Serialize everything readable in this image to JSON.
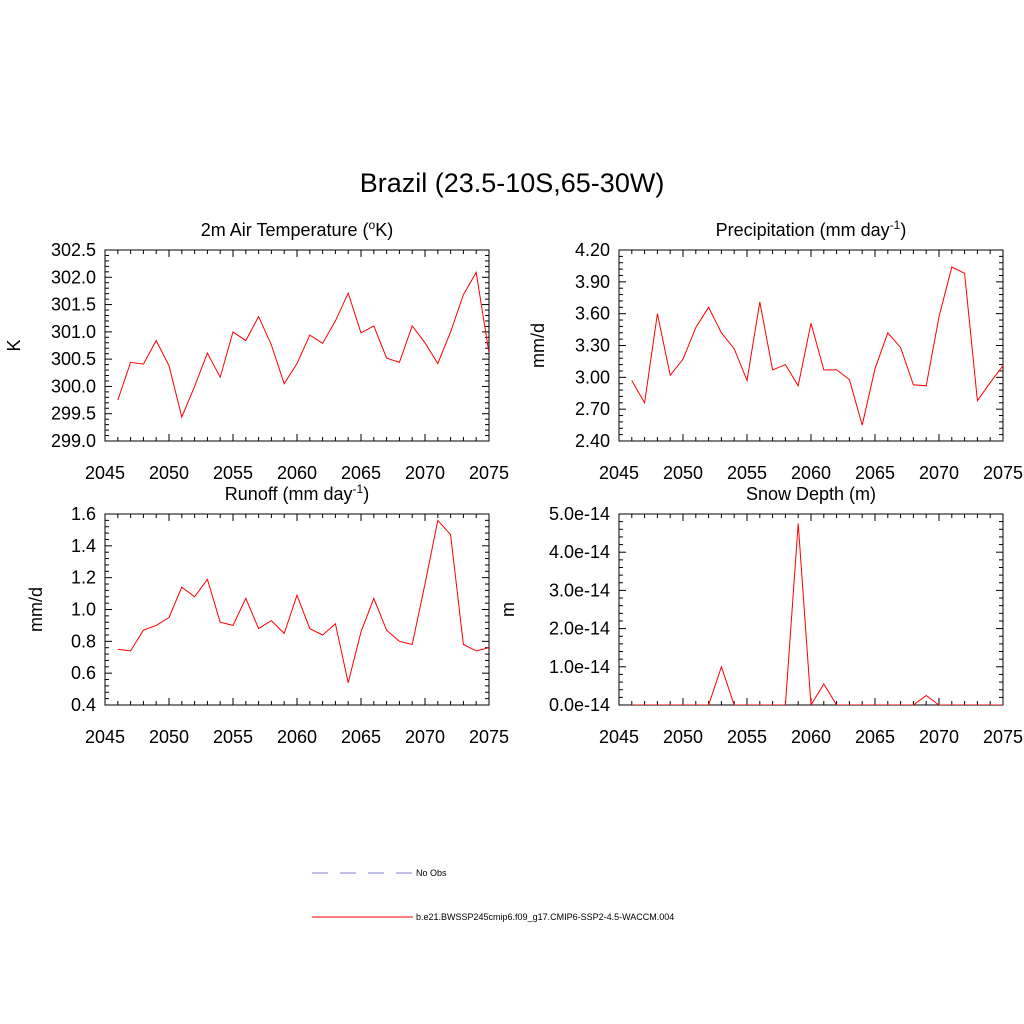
{
  "title": "Brazil (23.5-10S,65-30W)",
  "chart_data": [
    {
      "type": "line",
      "title_main": "2m Air Temperature (",
      "title_sup": "o",
      "title_post": "K)",
      "ylabel": "K",
      "xlim": [
        2045,
        2075
      ],
      "ylim": [
        299.0,
        302.5
      ],
      "xticks": [
        2045,
        2050,
        2055,
        2060,
        2065,
        2070,
        2075
      ],
      "yticks": [
        299.0,
        299.5,
        300.0,
        300.5,
        301.0,
        301.5,
        302.0,
        302.5
      ],
      "ytick_labels": [
        "299.0",
        "299.5",
        "300.0",
        "300.5",
        "301.0",
        "301.5",
        "302.0",
        "302.5"
      ],
      "series": [
        {
          "name": "b.e21.BWSSP245cmip6.f09_g17.CMIP6-SSP2-4.5-WACCM.004",
          "color": "#ff0000",
          "x": [
            2046,
            2047,
            2048,
            2049,
            2050,
            2051,
            2052,
            2053,
            2054,
            2055,
            2056,
            2057,
            2058,
            2059,
            2060,
            2061,
            2062,
            2063,
            2064,
            2065,
            2066,
            2067,
            2068,
            2069,
            2070,
            2071,
            2072,
            2073,
            2074,
            2075
          ],
          "values": [
            299.75,
            300.44,
            300.41,
            300.84,
            300.38,
            299.44,
            300.0,
            300.61,
            300.17,
            301.0,
            300.84,
            301.28,
            300.76,
            300.05,
            300.42,
            300.94,
            300.79,
            301.2,
            301.71,
            300.98,
            301.11,
            300.52,
            300.44,
            301.11,
            300.8,
            300.42,
            301.0,
            301.68,
            302.09,
            300.61
          ]
        }
      ]
    },
    {
      "type": "line",
      "title_main": "Precipitation (mm day",
      "title_sup": "-1",
      "title_post": ")",
      "ylabel": "mm/d",
      "xlim": [
        2045,
        2075
      ],
      "ylim": [
        2.4,
        4.2
      ],
      "xticks": [
        2045,
        2050,
        2055,
        2060,
        2065,
        2070,
        2075
      ],
      "yticks": [
        2.4,
        2.7,
        3.0,
        3.3,
        3.6,
        3.9,
        4.2
      ],
      "ytick_labels": [
        "2.40",
        "2.70",
        "3.00",
        "3.30",
        "3.60",
        "3.90",
        "4.20"
      ],
      "series": [
        {
          "name": "b.e21.BWSSP245cmip6.f09_g17.CMIP6-SSP2-4.5-WACCM.004",
          "color": "#ff0000",
          "x": [
            2046,
            2047,
            2048,
            2049,
            2050,
            2051,
            2052,
            2053,
            2054,
            2055,
            2056,
            2057,
            2058,
            2059,
            2060,
            2061,
            2062,
            2063,
            2064,
            2065,
            2066,
            2067,
            2068,
            2069,
            2070,
            2071,
            2072,
            2073,
            2074,
            2075
          ],
          "values": [
            2.97,
            2.76,
            3.6,
            3.02,
            3.17,
            3.47,
            3.66,
            3.42,
            3.27,
            2.97,
            3.71,
            3.07,
            3.12,
            2.92,
            3.51,
            3.07,
            3.07,
            2.98,
            2.55,
            3.08,
            3.42,
            3.28,
            2.93,
            2.92,
            3.57,
            4.04,
            3.98,
            2.78,
            2.95,
            3.11
          ]
        }
      ]
    },
    {
      "type": "line",
      "title_main": "Runoff (mm day",
      "title_sup": "-1",
      "title_post": ")",
      "ylabel": "mm/d",
      "xlim": [
        2045,
        2075
      ],
      "ylim": [
        0.4,
        1.6
      ],
      "xticks": [
        2045,
        2050,
        2055,
        2060,
        2065,
        2070,
        2075
      ],
      "yticks": [
        0.4,
        0.6,
        0.8,
        1.0,
        1.2,
        1.4,
        1.6
      ],
      "ytick_labels": [
        "0.4",
        "0.6",
        "0.8",
        "1.0",
        "1.2",
        "1.4",
        "1.6"
      ],
      "series": [
        {
          "name": "b.e21.BWSSP245cmip6.f09_g17.CMIP6-SSP2-4.5-WACCM.004",
          "color": "#ff0000",
          "x": [
            2046,
            2047,
            2048,
            2049,
            2050,
            2051,
            2052,
            2053,
            2054,
            2055,
            2056,
            2057,
            2058,
            2059,
            2060,
            2061,
            2062,
            2063,
            2064,
            2065,
            2066,
            2067,
            2068,
            2069,
            2070,
            2071,
            2072,
            2073,
            2074,
            2075
          ],
          "values": [
            0.75,
            0.74,
            0.87,
            0.9,
            0.95,
            1.14,
            1.08,
            1.19,
            0.92,
            0.9,
            1.07,
            0.88,
            0.93,
            0.85,
            1.09,
            0.88,
            0.84,
            0.91,
            0.54,
            0.86,
            1.07,
            0.87,
            0.8,
            0.78,
            1.16,
            1.56,
            1.47,
            0.78,
            0.74,
            0.76
          ]
        }
      ]
    },
    {
      "type": "line",
      "title_main": "Snow Depth (m)",
      "title_sup": "",
      "title_post": "",
      "ylabel": "m",
      "xlim": [
        2045,
        2075
      ],
      "ylim": [
        0,
        5e-14
      ],
      "xticks": [
        2045,
        2050,
        2055,
        2060,
        2065,
        2070,
        2075
      ],
      "yticks": [
        0,
        1e-14,
        2e-14,
        3e-14,
        4e-14,
        5e-14
      ],
      "ytick_labels": [
        "0.0e-14",
        "1.0e-14",
        "2.0e-14",
        "3.0e-14",
        "4.0e-14",
        "5.0e-14"
      ],
      "series": [
        {
          "name": "b.e21.BWSSP245cmip6.f09_g17.CMIP6-SSP2-4.5-WACCM.004",
          "color": "#ff0000",
          "x": [
            2046,
            2047,
            2048,
            2049,
            2050,
            2051,
            2052,
            2053,
            2054,
            2055,
            2056,
            2057,
            2058,
            2059,
            2060,
            2061,
            2062,
            2063,
            2064,
            2065,
            2066,
            2067,
            2068,
            2069,
            2070,
            2071,
            2072,
            2073,
            2074,
            2075
          ],
          "values": [
            0,
            0,
            0,
            0,
            0,
            0,
            0,
            1e-14,
            0,
            0,
            0,
            0,
            0,
            4.75e-14,
            0,
            5.5e-15,
            0,
            0,
            0,
            0,
            0,
            0,
            0,
            2.5e-15,
            0,
            0,
            0,
            0,
            0,
            0
          ]
        }
      ]
    }
  ],
  "legend": {
    "obs_label": "No Obs",
    "obs_color": "#9999dd",
    "model_label": "b.e21.BWSSP245cmip6.f09_g17.CMIP6-SSP2-4.5-WACCM.004",
    "model_color": "#ff0000"
  }
}
